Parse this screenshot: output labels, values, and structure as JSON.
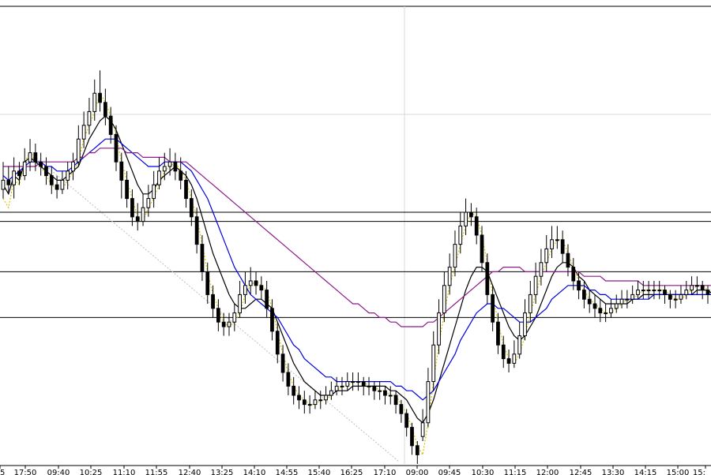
{
  "chart_data": {
    "type": "candlestick",
    "title": "",
    "xlabel": "",
    "ylabel": "",
    "x_tick_labels": [
      "5",
      "17:50",
      "09:40",
      "10:25",
      "11:10",
      "11:55",
      "12:40",
      "13:25",
      "14:10",
      "14:55",
      "15:40",
      "16:25",
      "17:10",
      "09:00",
      "09:45",
      "10:30",
      "11:15",
      "12:00",
      "12:45",
      "13:30",
      "14:15",
      "15:00",
      "15:"
    ],
    "grid": true,
    "legend": "none",
    "ylim": [
      0,
      100
    ],
    "series": [
      {
        "values": [
          58,
          56,
          62,
          61,
          66,
          68,
          66,
          65,
          63,
          61,
          60,
          60,
          62,
          64,
          66,
          71,
          74,
          77,
          81,
          79,
          76,
          72,
          66,
          62,
          58,
          54,
          53,
          56,
          58,
          61,
          64,
          65,
          66,
          64,
          62,
          58,
          54,
          48,
          42,
          37,
          34,
          31,
          30,
          31,
          33,
          37,
          39,
          40,
          39,
          38,
          34,
          29,
          24,
          20,
          17,
          15,
          14,
          13,
          13,
          14,
          14,
          15,
          16,
          17,
          17,
          18,
          18,
          18,
          17,
          17,
          16,
          16,
          15,
          15,
          13,
          11,
          8,
          4,
          2,
          9,
          18,
          26,
          33,
          39,
          43,
          48,
          52,
          55,
          54,
          50,
          44,
          37,
          31,
          26,
          23,
          22,
          24,
          28,
          33,
          37,
          41,
          44,
          47,
          49,
          49,
          46,
          43,
          40,
          38,
          36,
          35,
          34,
          33,
          33,
          34,
          35,
          36,
          36,
          37,
          38,
          38,
          38,
          38,
          38,
          37,
          36,
          36,
          37,
          38,
          39,
          39,
          38,
          37
        ]
      },
      {
        "values": [
          61,
          59,
          63,
          62,
          66,
          67,
          66,
          65,
          64,
          63,
          62,
          62,
          63,
          64,
          65,
          68,
          71,
          73,
          75,
          76,
          75,
          73,
          70,
          67,
          64,
          61,
          59,
          59,
          60,
          62,
          63,
          64,
          65,
          64,
          63,
          61,
          58,
          54,
          50,
          46,
          43,
          40,
          37,
          35,
          34,
          34,
          35,
          36,
          36,
          35,
          34,
          31,
          28,
          25,
          22,
          20,
          18,
          17,
          16,
          15,
          15,
          15,
          16,
          16,
          16,
          17,
          17,
          17,
          17,
          17,
          17,
          17,
          16,
          16,
          15,
          14,
          12,
          10,
          9,
          11,
          14,
          18,
          22,
          26,
          30,
          34,
          38,
          41,
          43,
          43,
          42,
          39,
          36,
          33,
          30,
          28,
          27,
          28,
          30,
          32,
          35,
          38,
          41,
          43,
          44,
          44,
          43,
          41,
          40,
          38,
          37,
          36,
          35,
          35,
          35,
          35,
          35,
          36,
          36,
          37,
          37,
          37,
          37,
          37,
          37,
          37,
          37,
          37,
          37,
          38,
          38,
          38,
          37
        ]
      },
      {
        "values": [
          63,
          62,
          63,
          64,
          65,
          66,
          66,
          66,
          65,
          65,
          64,
          64,
          64,
          65,
          66,
          67,
          68,
          69,
          70,
          71,
          71,
          71,
          70,
          69,
          68,
          67,
          66,
          65,
          65,
          65,
          66,
          66,
          66,
          66,
          65,
          64,
          62,
          60,
          58,
          55,
          52,
          49,
          46,
          43,
          41,
          39,
          37,
          36,
          35,
          34,
          33,
          32,
          30,
          28,
          26,
          25,
          23,
          22,
          21,
          20,
          19,
          19,
          18,
          18,
          18,
          18,
          18,
          18,
          18,
          18,
          18,
          18,
          18,
          17,
          17,
          16,
          16,
          15,
          14,
          15,
          16,
          18,
          20,
          22,
          24,
          27,
          29,
          31,
          33,
          34,
          35,
          35,
          34,
          34,
          33,
          32,
          31,
          31,
          31,
          32,
          33,
          34,
          36,
          37,
          38,
          39,
          39,
          39,
          39,
          38,
          38,
          37,
          37,
          36,
          36,
          36,
          36,
          36,
          36,
          36,
          36,
          37,
          37,
          37,
          37,
          37,
          37,
          37,
          37,
          37,
          37,
          37,
          37
        ]
      },
      {
        "values": [
          65,
          65,
          65,
          65,
          65,
          65,
          65,
          66,
          66,
          66,
          66,
          66,
          66,
          66,
          67,
          67,
          68,
          68,
          69,
          69,
          69,
          69,
          69,
          68,
          68,
          68,
          67,
          67,
          67,
          67,
          67,
          66,
          66,
          66,
          66,
          65,
          64,
          63,
          62,
          61,
          60,
          59,
          58,
          57,
          56,
          55,
          54,
          53,
          52,
          51,
          50,
          49,
          48,
          47,
          46,
          45,
          44,
          43,
          42,
          41,
          40,
          39,
          38,
          37,
          36,
          35,
          35,
          34,
          33,
          33,
          32,
          32,
          31,
          31,
          30,
          30,
          30,
          30,
          30,
          31,
          31,
          32,
          33,
          34,
          35,
          36,
          37,
          38,
          39,
          40,
          41,
          42,
          42,
          43,
          43,
          43,
          43,
          42,
          42,
          42,
          42,
          42,
          42,
          42,
          42,
          42,
          42,
          42,
          41,
          41,
          41,
          41,
          40,
          40,
          40,
          40,
          40,
          40,
          40,
          39,
          39,
          39,
          39,
          39,
          39,
          39,
          39,
          39,
          39,
          39,
          39,
          39,
          39
        ]
      }
    ],
    "candles": [
      [
        60,
        62,
        58,
        66
      ],
      [
        62,
        61,
        59,
        65
      ],
      [
        61,
        64,
        58,
        67
      ],
      [
        64,
        63,
        61,
        66
      ],
      [
        63,
        66,
        62,
        69
      ],
      [
        66,
        68,
        64,
        71
      ],
      [
        68,
        66,
        64,
        70
      ],
      [
        66,
        65,
        63,
        68
      ],
      [
        65,
        63,
        61,
        67
      ],
      [
        63,
        61,
        59,
        65
      ],
      [
        61,
        60,
        58,
        63
      ],
      [
        60,
        62,
        59,
        64
      ],
      [
        62,
        64,
        60,
        66
      ],
      [
        64,
        66,
        62,
        68
      ],
      [
        66,
        71,
        65,
        74
      ],
      [
        71,
        74,
        69,
        77
      ],
      [
        74,
        77,
        72,
        80
      ],
      [
        77,
        81,
        75,
        84
      ],
      [
        81,
        79,
        77,
        86
      ],
      [
        79,
        76,
        74,
        82
      ],
      [
        76,
        72,
        70,
        78
      ],
      [
        72,
        66,
        64,
        74
      ],
      [
        66,
        62,
        58,
        68
      ],
      [
        62,
        58,
        56,
        64
      ],
      [
        58,
        54,
        52,
        60
      ],
      [
        54,
        53,
        51,
        57
      ],
      [
        53,
        56,
        52,
        59
      ],
      [
        56,
        58,
        54,
        61
      ],
      [
        58,
        61,
        56,
        64
      ],
      [
        61,
        64,
        60,
        67
      ],
      [
        64,
        65,
        62,
        68
      ],
      [
        65,
        66,
        63,
        69
      ],
      [
        66,
        64,
        62,
        68
      ],
      [
        64,
        62,
        60,
        67
      ],
      [
        62,
        58,
        56,
        64
      ],
      [
        58,
        54,
        52,
        60
      ],
      [
        54,
        48,
        46,
        56
      ],
      [
        48,
        42,
        40,
        50
      ],
      [
        42,
        37,
        35,
        44
      ],
      [
        37,
        34,
        32,
        39
      ],
      [
        34,
        31,
        29,
        36
      ],
      [
        31,
        30,
        28,
        33
      ],
      [
        30,
        31,
        28,
        33
      ],
      [
        31,
        33,
        29,
        35
      ],
      [
        33,
        37,
        32,
        40
      ],
      [
        37,
        39,
        35,
        42
      ],
      [
        39,
        40,
        37,
        43
      ],
      [
        40,
        39,
        37,
        42
      ],
      [
        39,
        38,
        36,
        41
      ],
      [
        38,
        34,
        32,
        40
      ],
      [
        34,
        29,
        27,
        36
      ],
      [
        29,
        24,
        22,
        31
      ],
      [
        24,
        20,
        18,
        26
      ],
      [
        20,
        17,
        15,
        22
      ],
      [
        17,
        15,
        13,
        19
      ],
      [
        15,
        14,
        12,
        17
      ],
      [
        14,
        13,
        11,
        16
      ],
      [
        13,
        13,
        11,
        15
      ],
      [
        13,
        14,
        12,
        16
      ],
      [
        14,
        14,
        12,
        16
      ],
      [
        14,
        15,
        13,
        17
      ],
      [
        15,
        16,
        14,
        18
      ],
      [
        16,
        17,
        15,
        19
      ],
      [
        17,
        17,
        15,
        19
      ],
      [
        17,
        18,
        16,
        20
      ],
      [
        18,
        18,
        16,
        20
      ],
      [
        18,
        18,
        16,
        20
      ],
      [
        18,
        17,
        15,
        19
      ],
      [
        17,
        17,
        15,
        19
      ],
      [
        17,
        16,
        14,
        18
      ],
      [
        16,
        16,
        14,
        18
      ],
      [
        16,
        15,
        13,
        17
      ],
      [
        15,
        15,
        13,
        17
      ],
      [
        15,
        13,
        11,
        16
      ],
      [
        13,
        11,
        9,
        14
      ],
      [
        11,
        8,
        6,
        12
      ],
      [
        8,
        4,
        2,
        9
      ],
      [
        4,
        2,
        0,
        5
      ],
      [
        6,
        9,
        5,
        12
      ],
      [
        9,
        18,
        8,
        21
      ],
      [
        18,
        26,
        16,
        29
      ],
      [
        26,
        33,
        24,
        36
      ],
      [
        33,
        39,
        31,
        42
      ],
      [
        39,
        43,
        37,
        46
      ],
      [
        43,
        48,
        41,
        51
      ],
      [
        48,
        52,
        46,
        55
      ],
      [
        52,
        55,
        50,
        58
      ],
      [
        55,
        54,
        52,
        57
      ],
      [
        54,
        50,
        48,
        56
      ],
      [
        50,
        44,
        42,
        52
      ],
      [
        44,
        37,
        35,
        46
      ],
      [
        37,
        31,
        29,
        39
      ],
      [
        31,
        26,
        24,
        33
      ],
      [
        26,
        23,
        21,
        28
      ],
      [
        23,
        22,
        20,
        25
      ],
      [
        22,
        24,
        21,
        27
      ],
      [
        24,
        28,
        23,
        31
      ],
      [
        28,
        33,
        27,
        36
      ],
      [
        33,
        37,
        31,
        40
      ],
      [
        37,
        41,
        35,
        44
      ],
      [
        41,
        44,
        39,
        47
      ],
      [
        44,
        47,
        42,
        50
      ],
      [
        47,
        49,
        45,
        52
      ],
      [
        49,
        49,
        47,
        52
      ],
      [
        49,
        46,
        44,
        51
      ],
      [
        46,
        43,
        41,
        48
      ],
      [
        43,
        40,
        38,
        45
      ],
      [
        40,
        38,
        36,
        42
      ],
      [
        38,
        36,
        34,
        40
      ],
      [
        36,
        35,
        33,
        38
      ],
      [
        35,
        34,
        32,
        37
      ],
      [
        34,
        33,
        31,
        36
      ],
      [
        33,
        33,
        31,
        35
      ],
      [
        33,
        34,
        32,
        36
      ],
      [
        34,
        35,
        33,
        37
      ],
      [
        35,
        36,
        34,
        38
      ],
      [
        36,
        36,
        34,
        38
      ],
      [
        36,
        37,
        35,
        39
      ],
      [
        37,
        38,
        36,
        40
      ],
      [
        38,
        38,
        36,
        40
      ],
      [
        38,
        38,
        36,
        40
      ],
      [
        38,
        38,
        36,
        40
      ],
      [
        38,
        38,
        36,
        40
      ],
      [
        38,
        37,
        35,
        39
      ],
      [
        37,
        36,
        34,
        38
      ],
      [
        36,
        36,
        34,
        38
      ],
      [
        36,
        37,
        35,
        39
      ],
      [
        37,
        38,
        36,
        40
      ],
      [
        38,
        39,
        37,
        41
      ],
      [
        39,
        39,
        37,
        41
      ],
      [
        39,
        38,
        36,
        40
      ],
      [
        38,
        37,
        35,
        39
      ]
    ],
    "horizontal_levels": [
      55,
      53,
      42,
      32
    ],
    "colors": {
      "background": "#ffffff",
      "candle": "#000000",
      "grid": "#d9d9d9",
      "level": "#000000",
      "ma_fast": "#d4c200",
      "ma_mid": "#0000e0",
      "ma_slow": "#8c1a8c",
      "ma_black": "#000000",
      "trend_line": "#bfbfbf"
    }
  }
}
